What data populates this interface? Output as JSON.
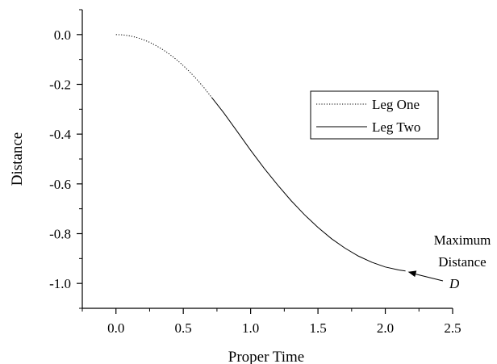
{
  "chart_data": {
    "type": "line",
    "title": "",
    "xlabel": "Proper Time",
    "ylabel": "Distance",
    "xlim": [
      -0.25,
      2.5
    ],
    "ylim": [
      -1.1,
      0.1
    ],
    "xticks": [
      0.0,
      0.5,
      1.0,
      1.5,
      2.0,
      2.5
    ],
    "xtick_labels": [
      "0.0",
      "0.5",
      "1.0",
      "1.5",
      "2.0",
      "2.5"
    ],
    "yticks": [
      0.0,
      -0.2,
      -0.4,
      -0.6,
      -0.8,
      -1.0
    ],
    "ytick_labels": [
      "0.0",
      "-0.2",
      "-0.4",
      "-0.6",
      "-0.8",
      "-1.0"
    ],
    "grid": false,
    "legend_position": "center-right",
    "series": [
      {
        "name": "Leg One",
        "style": "dotted",
        "x": [
          0.0,
          0.05,
          0.1,
          0.15,
          0.2,
          0.25,
          0.3,
          0.35,
          0.4,
          0.45,
          0.5,
          0.55,
          0.6,
          0.65,
          0.7,
          0.71
        ],
        "y": [
          0.0,
          -0.001,
          -0.005,
          -0.011,
          -0.02,
          -0.031,
          -0.045,
          -0.061,
          -0.08,
          -0.101,
          -0.125,
          -0.151,
          -0.18,
          -0.211,
          -0.245,
          -0.252
        ]
      },
      {
        "name": "Leg Two",
        "style": "solid",
        "x": [
          0.71,
          0.8,
          0.9,
          1.0,
          1.1,
          1.2,
          1.3,
          1.4,
          1.5,
          1.6,
          1.7,
          1.8,
          1.9,
          2.0,
          2.1,
          2.15
        ],
        "y": [
          -0.252,
          -0.314,
          -0.389,
          -0.465,
          -0.537,
          -0.604,
          -0.667,
          -0.724,
          -0.775,
          -0.82,
          -0.858,
          -0.89,
          -0.915,
          -0.934,
          -0.946,
          -0.95
        ]
      }
    ],
    "annotations": [
      {
        "lines": [
          "Maximum",
          "Distance"
        ],
        "symbol": "D",
        "arrow_to": [
          2.15,
          -0.95
        ]
      }
    ]
  }
}
